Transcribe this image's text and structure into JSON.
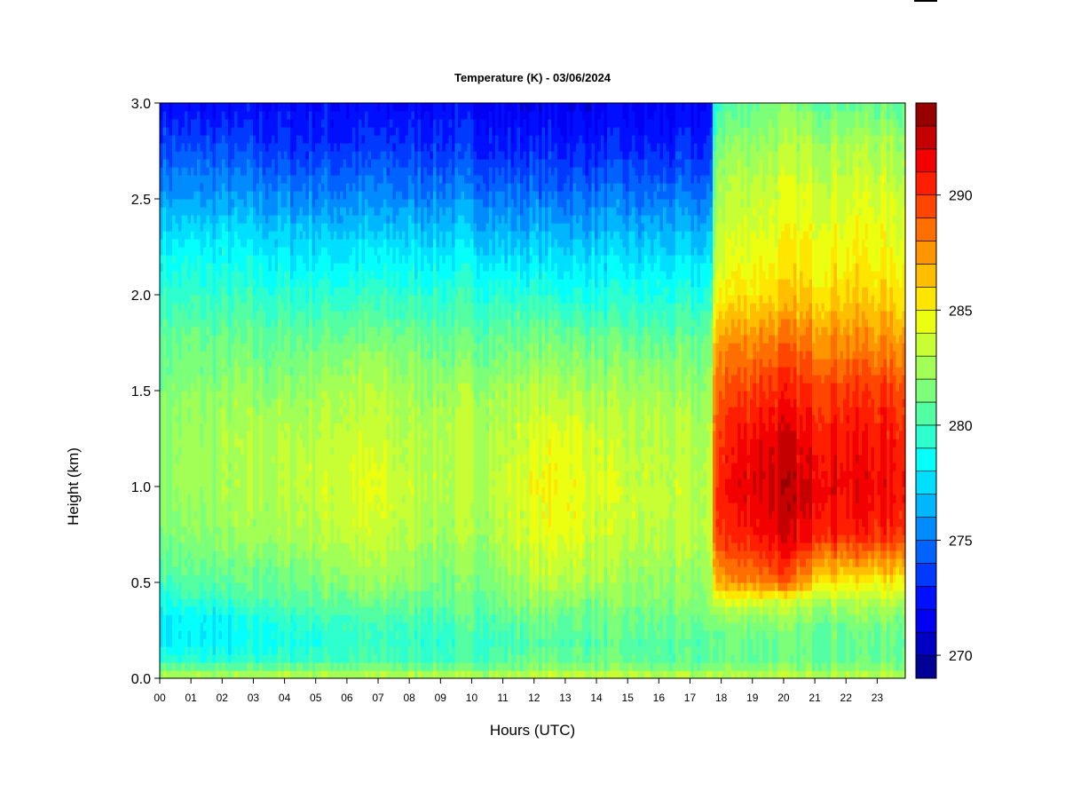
{
  "chart_data": {
    "type": "heatmap",
    "title": "Temperature (K) - 03/06/2024",
    "xlabel": "Hours (UTC)",
    "ylabel": "Height (km)",
    "x_ticks": [
      "00",
      "01",
      "02",
      "03",
      "04",
      "05",
      "06",
      "07",
      "08",
      "09",
      "10",
      "11",
      "12",
      "13",
      "14",
      "15",
      "16",
      "17",
      "18",
      "19",
      "20",
      "21",
      "22",
      "23"
    ],
    "xlim": [
      0,
      23.9
    ],
    "y_ticks": [
      "0.0",
      "0.5",
      "1.0",
      "1.5",
      "2.0",
      "2.5",
      "3.0"
    ],
    "ylim": [
      0,
      3.0
    ],
    "colorbar": {
      "min": 269,
      "max": 294,
      "levels": 25,
      "tick_labels": [
        "270",
        "275",
        "280",
        "285",
        "290"
      ],
      "tick_values": [
        270,
        275,
        280,
        285,
        290
      ]
    },
    "profiles": {
      "heights_km": [
        0.0,
        0.05,
        0.1,
        0.2,
        0.3,
        0.4,
        0.5,
        0.75,
        1.0,
        1.25,
        1.5,
        1.75,
        2.0,
        2.2,
        2.5,
        2.75,
        3.0
      ],
      "times_h": [
        0,
        2,
        4,
        6,
        7,
        8,
        9,
        10,
        11,
        12,
        13,
        14,
        15,
        16,
        17,
        17.7,
        17.8,
        19,
        20,
        21,
        22,
        23,
        23.9
      ],
      "temperature_K": [
        [
          283.5,
          281.5,
          279.5,
          278.0,
          278.0,
          279.0,
          280.0,
          281.5,
          282.0,
          282.0,
          281.5,
          281.0,
          279.5,
          278.5,
          276.0,
          274.0,
          272.0
        ],
        [
          283.0,
          281.0,
          279.0,
          278.0,
          278.0,
          279.5,
          280.5,
          282.0,
          282.5,
          282.5,
          282.0,
          281.0,
          279.5,
          278.5,
          276.0,
          274.0,
          272.0
        ],
        [
          283.5,
          281.5,
          279.5,
          279.0,
          279.5,
          280.5,
          281.0,
          282.5,
          283.0,
          283.0,
          282.0,
          281.0,
          279.5,
          278.0,
          275.5,
          273.5,
          272.0
        ],
        [
          283.5,
          281.5,
          280.0,
          279.5,
          280.0,
          281.0,
          282.0,
          283.5,
          284.0,
          283.5,
          283.0,
          281.5,
          279.5,
          278.0,
          275.5,
          273.5,
          272.0
        ],
        [
          283.5,
          281.5,
          280.0,
          279.5,
          280.0,
          281.0,
          282.0,
          283.5,
          284.0,
          283.5,
          283.0,
          281.5,
          279.5,
          278.0,
          275.5,
          273.5,
          272.0
        ],
        [
          283.5,
          281.5,
          280.0,
          279.5,
          280.0,
          281.0,
          282.0,
          283.0,
          283.5,
          283.0,
          282.5,
          281.5,
          279.5,
          278.0,
          275.5,
          273.5,
          272.0
        ],
        [
          283.5,
          281.5,
          280.0,
          279.5,
          280.0,
          281.0,
          281.5,
          282.5,
          283.0,
          283.0,
          282.5,
          281.0,
          279.5,
          278.0,
          275.5,
          273.5,
          272.0
        ],
        [
          283.5,
          281.5,
          280.0,
          280.0,
          280.5,
          281.0,
          281.5,
          282.5,
          283.0,
          283.0,
          282.5,
          281.0,
          279.5,
          278.0,
          275.5,
          273.5,
          272.0
        ],
        [
          283.5,
          281.5,
          280.5,
          280.0,
          280.5,
          281.5,
          282.0,
          283.0,
          283.5,
          283.0,
          282.5,
          281.0,
          279.5,
          277.5,
          275.0,
          273.0,
          271.5
        ],
        [
          284.0,
          282.0,
          281.0,
          280.5,
          281.0,
          282.0,
          283.0,
          284.0,
          284.5,
          284.0,
          283.0,
          281.5,
          279.5,
          277.5,
          275.0,
          273.0,
          271.5
        ],
        [
          284.0,
          282.0,
          281.0,
          280.5,
          281.0,
          282.0,
          283.0,
          284.5,
          285.0,
          284.5,
          283.0,
          281.5,
          279.0,
          277.5,
          275.0,
          273.0,
          271.5
        ],
        [
          284.0,
          282.0,
          281.0,
          280.5,
          281.0,
          281.5,
          282.5,
          283.5,
          284.0,
          283.5,
          282.5,
          281.0,
          279.0,
          277.5,
          275.0,
          273.0,
          271.5
        ],
        [
          284.0,
          282.0,
          280.5,
          280.5,
          281.0,
          281.5,
          282.0,
          283.0,
          283.5,
          283.0,
          282.5,
          281.0,
          279.0,
          277.5,
          275.0,
          273.0,
          271.5
        ],
        [
          283.5,
          281.5,
          280.5,
          280.5,
          281.0,
          281.5,
          282.0,
          283.0,
          283.5,
          283.0,
          282.5,
          281.0,
          279.0,
          277.5,
          275.0,
          273.0,
          271.5
        ],
        [
          283.5,
          281.5,
          280.5,
          280.5,
          281.0,
          281.5,
          282.0,
          283.0,
          283.0,
          283.0,
          282.0,
          281.0,
          279.0,
          277.5,
          275.0,
          273.0,
          271.5
        ],
        [
          283.5,
          281.5,
          280.5,
          280.5,
          281.0,
          281.5,
          282.0,
          283.0,
          283.0,
          282.5,
          282.0,
          281.0,
          279.0,
          277.5,
          275.0,
          273.0,
          272.0
        ],
        [
          283.5,
          282.0,
          281.0,
          281.0,
          282.0,
          284.0,
          287.0,
          290.0,
          290.5,
          290.0,
          289.0,
          287.5,
          285.0,
          284.0,
          283.0,
          282.0,
          280.0
        ],
        [
          283.5,
          282.0,
          281.0,
          281.0,
          282.0,
          284.0,
          288.0,
          291.0,
          292.0,
          291.5,
          290.0,
          288.0,
          285.5,
          284.5,
          283.5,
          282.5,
          281.0
        ],
        [
          283.5,
          282.0,
          281.0,
          281.0,
          282.0,
          283.5,
          289.0,
          292.0,
          292.5,
          292.0,
          290.5,
          288.5,
          286.0,
          285.0,
          284.0,
          283.0,
          281.5
        ],
        [
          283.5,
          282.0,
          281.0,
          281.0,
          281.5,
          283.0,
          286.0,
          291.0,
          292.0,
          291.0,
          290.0,
          288.0,
          286.0,
          285.0,
          284.0,
          283.0,
          281.0
        ],
        [
          283.5,
          282.0,
          281.0,
          281.0,
          281.5,
          283.0,
          285.0,
          290.5,
          291.5,
          291.0,
          290.0,
          288.0,
          286.0,
          285.0,
          284.0,
          283.0,
          281.0
        ],
        [
          283.5,
          282.0,
          281.0,
          281.0,
          281.5,
          283.0,
          285.0,
          290.5,
          291.5,
          291.0,
          290.0,
          288.0,
          286.0,
          285.0,
          284.0,
          283.0,
          281.0
        ],
        [
          283.0,
          282.0,
          281.0,
          281.0,
          281.5,
          283.0,
          285.0,
          290.0,
          291.0,
          290.5,
          289.5,
          287.5,
          285.5,
          284.5,
          283.5,
          282.5,
          281.0
        ]
      ]
    }
  }
}
